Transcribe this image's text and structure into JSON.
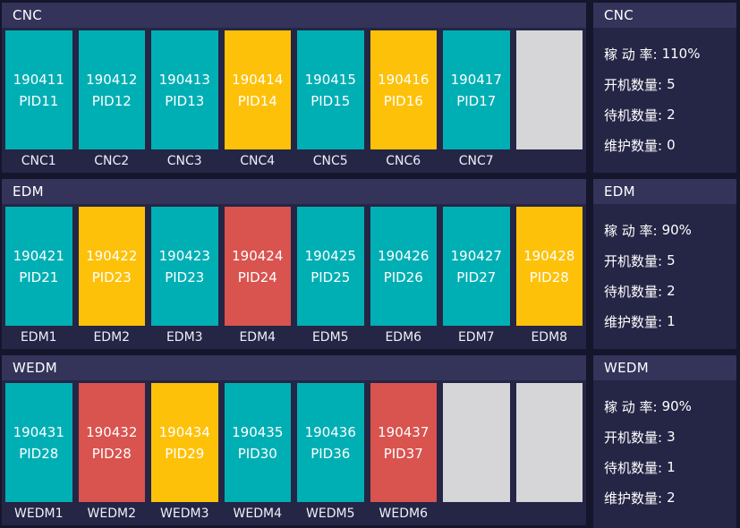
{
  "status_colors": {
    "running": "#00afb4",
    "standby": "#fec109",
    "maintenance": "#d9534f",
    "empty": "#d6d6d9"
  },
  "sections": [
    {
      "title": "CNC",
      "machines": [
        {
          "code": "190411",
          "pid": "PID11",
          "label": "CNC1",
          "status": "running"
        },
        {
          "code": "190412",
          "pid": "PID12",
          "label": "CNC2",
          "status": "running"
        },
        {
          "code": "190413",
          "pid": "PID13",
          "label": "CNC3",
          "status": "running"
        },
        {
          "code": "190414",
          "pid": "PID14",
          "label": "CNC4",
          "status": "standby"
        },
        {
          "code": "190415",
          "pid": "PID15",
          "label": "CNC5",
          "status": "running"
        },
        {
          "code": "190416",
          "pid": "PID16",
          "label": "CNC6",
          "status": "standby"
        },
        {
          "code": "190417",
          "pid": "PID17",
          "label": "CNC7",
          "status": "running"
        },
        {
          "code": "",
          "pid": "",
          "label": "",
          "status": "empty"
        }
      ]
    },
    {
      "title": "EDM",
      "machines": [
        {
          "code": "190421",
          "pid": "PID21",
          "label": "EDM1",
          "status": "running"
        },
        {
          "code": "190422",
          "pid": "PID23",
          "label": "EDM2",
          "status": "standby"
        },
        {
          "code": "190423",
          "pid": "PID23",
          "label": "EDM3",
          "status": "running"
        },
        {
          "code": "190424",
          "pid": "PID24",
          "label": "EDM4",
          "status": "maintenance"
        },
        {
          "code": "190425",
          "pid": "PID25",
          "label": "EDM5",
          "status": "running"
        },
        {
          "code": "190426",
          "pid": "PID26",
          "label": "EDM6",
          "status": "running"
        },
        {
          "code": "190427",
          "pid": "PID27",
          "label": "EDM7",
          "status": "running"
        },
        {
          "code": "190428",
          "pid": "PID28",
          "label": "EDM8",
          "status": "standby"
        }
      ]
    },
    {
      "title": "WEDM",
      "machines": [
        {
          "code": "190431",
          "pid": "PID28",
          "label": "WEDM1",
          "status": "running"
        },
        {
          "code": "190432",
          "pid": "PID28",
          "label": "WEDM2",
          "status": "maintenance"
        },
        {
          "code": "190434",
          "pid": "PID29",
          "label": "WEDM3",
          "status": "standby"
        },
        {
          "code": "190435",
          "pid": "PID30",
          "label": "WEDM4",
          "status": "running"
        },
        {
          "code": "190436",
          "pid": "PID36",
          "label": "WEDM5",
          "status": "running"
        },
        {
          "code": "190437",
          "pid": "PID37",
          "label": "WEDM6",
          "status": "maintenance"
        },
        {
          "code": "",
          "pid": "",
          "label": "",
          "status": "empty"
        },
        {
          "code": "",
          "pid": "",
          "label": "",
          "status": "empty"
        }
      ]
    }
  ],
  "panels": [
    {
      "title": "CNC",
      "stats": [
        {
          "label": "稼 动 率:",
          "value": "110%"
        },
        {
          "label": "开机数量:",
          "value": "5"
        },
        {
          "label": "待机数量:",
          "value": "2"
        },
        {
          "label": "维护数量:",
          "value": "0"
        }
      ]
    },
    {
      "title": "EDM",
      "stats": [
        {
          "label": "稼 动 率:",
          "value": "90%"
        },
        {
          "label": "开机数量:",
          "value": "5"
        },
        {
          "label": "待机数量:",
          "value": "2"
        },
        {
          "label": "维护数量:",
          "value": "1"
        }
      ]
    },
    {
      "title": "WEDM",
      "stats": [
        {
          "label": "稼 动 率:",
          "value": "90%"
        },
        {
          "label": "开机数量:",
          "value": "3"
        },
        {
          "label": "待机数量:",
          "value": "1"
        },
        {
          "label": "维护数量:",
          "value": "2"
        }
      ]
    }
  ]
}
